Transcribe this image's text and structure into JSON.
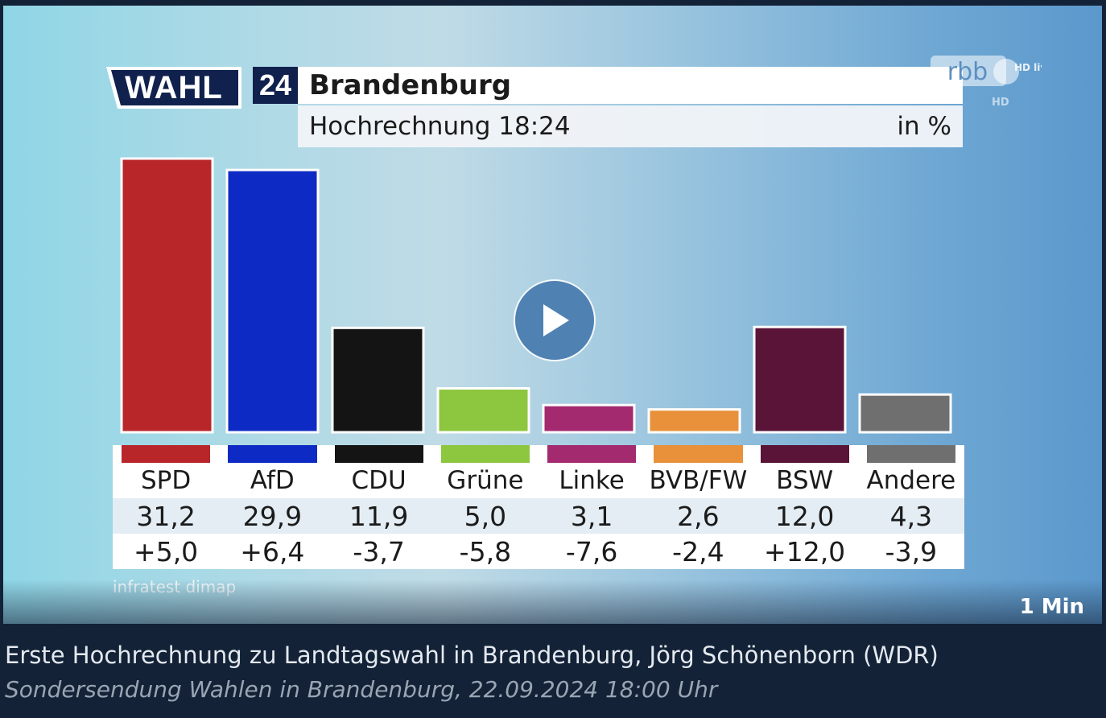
{
  "video": {
    "logo_text": "WAHL",
    "logo_number": "24",
    "title": "Brandenburg",
    "subtitle": "Hochrechnung 18:24",
    "unit": "in %",
    "channel": "rbb",
    "channel_badge": "HD live",
    "channel_hd": "HD",
    "source": "infratest dimap",
    "duration": "1 Min"
  },
  "chart_data": {
    "type": "bar",
    "title": "Brandenburg",
    "subtitle": "Hochrechnung 18:24",
    "unit": "in %",
    "categories": [
      "SPD",
      "AfD",
      "CDU",
      "Grüne",
      "Linke",
      "BVB/FW",
      "BSW",
      "Andere"
    ],
    "values": [
      31.2,
      29.9,
      11.9,
      5.0,
      3.1,
      2.6,
      12.0,
      4.3
    ],
    "value_labels": [
      "31,2",
      "29,9",
      "11,9",
      "5,0",
      "3,1",
      "2,6",
      "12,0",
      "4,3"
    ],
    "change_labels": [
      "+5,0",
      "+6,4",
      "-3,7",
      "-5,8",
      "-7,6",
      "-2,4",
      "+12,0",
      "-3,9"
    ],
    "colors": [
      "#b8262a",
      "#0d2bc4",
      "#141414",
      "#8dc63f",
      "#a32a6e",
      "#e8913a",
      "#5a1437",
      "#6f6f6f"
    ],
    "ylim": [
      0,
      32
    ]
  },
  "caption": {
    "title": "Erste Hochrechnung zu Landtagswahl in Brandenburg, Jörg Schönenborn (WDR)",
    "subtitle": "Sondersendung Wahlen in Brandenburg, 22.09.2024 18:00 Uhr"
  }
}
